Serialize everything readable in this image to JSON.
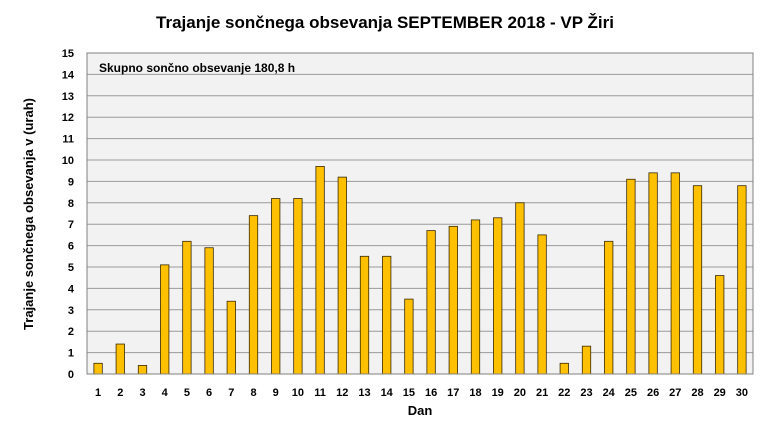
{
  "chart_data": {
    "type": "bar",
    "title": "Trajanje  sončnega  obsevanja  SEPTEMBER  2018 - VP Žiri",
    "xlabel": "Dan",
    "ylabel": "Trajanje  sončnega  obsevanja  v  (urah)",
    "annotation": "Skupno sončno obsevanje  180,8 h",
    "categories": [
      "1",
      "2",
      "3",
      "4",
      "5",
      "6",
      "7",
      "8",
      "9",
      "10",
      "11",
      "12",
      "13",
      "14",
      "15",
      "16",
      "17",
      "18",
      "19",
      "20",
      "21",
      "22",
      "23",
      "24",
      "25",
      "26",
      "27",
      "28",
      "29",
      "30"
    ],
    "values": [
      0.5,
      1.4,
      0.4,
      5.1,
      6.2,
      5.9,
      3.4,
      7.4,
      8.2,
      8.2,
      9.7,
      9.2,
      5.5,
      5.5,
      3.5,
      6.7,
      6.9,
      7.2,
      7.3,
      8.0,
      6.5,
      0.5,
      1.3,
      6.2,
      9.1,
      9.4,
      9.4,
      8.8,
      4.6,
      8.8
    ],
    "ylim": [
      0,
      15
    ],
    "yticks": [
      0,
      1,
      2,
      3,
      4,
      5,
      6,
      7,
      8,
      9,
      10,
      11,
      12,
      13,
      14,
      15
    ],
    "grid": true,
    "legend": "none",
    "colors": {
      "bar": "#FFC000",
      "bar_edge": "#3a2a00",
      "plot_bg": "#f2f2f2",
      "grid": "#9a9a9a"
    }
  }
}
